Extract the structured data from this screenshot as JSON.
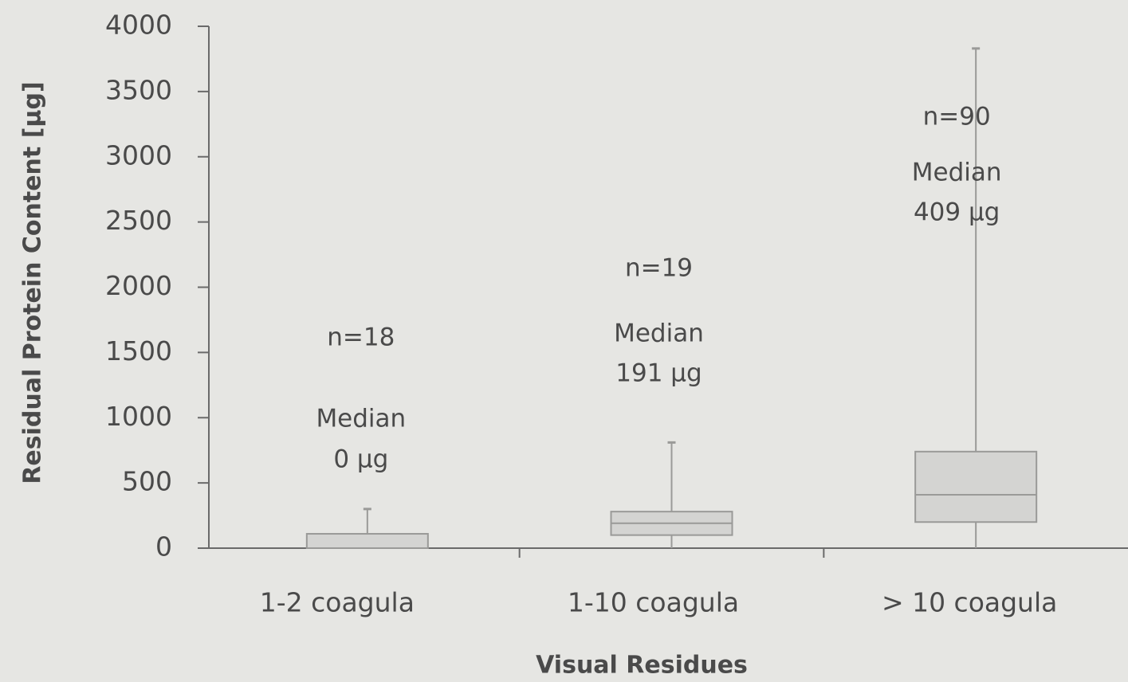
{
  "chart_data": {
    "type": "box",
    "y_label": "Residual Protein Content [µg]",
    "x_label": "Visual Residues",
    "categories": [
      "1-2 coagula",
      "1-10 coagula",
      "> 10 coagula"
    ],
    "boxes": {
      "min": [
        0,
        0,
        0
      ],
      "q1": [
        0,
        100,
        200
      ],
      "median": [
        0,
        191,
        409
      ],
      "q3": [
        110,
        280,
        740
      ],
      "max": [
        300,
        810,
        3830
      ]
    },
    "annotations": [
      [
        "n=18",
        "Median",
        "0 µg"
      ],
      [
        "n=19",
        "Median",
        "191 µg"
      ],
      [
        "n=90",
        "Median",
        "409 µg"
      ]
    ],
    "color": "#d4d4d2",
    "edge_color": "#9a9a98",
    "ylim": [
      0,
      4000
    ],
    "yticks": [
      0,
      500,
      1000,
      1500,
      2000,
      2500,
      3000,
      3500,
      4000
    ]
  }
}
